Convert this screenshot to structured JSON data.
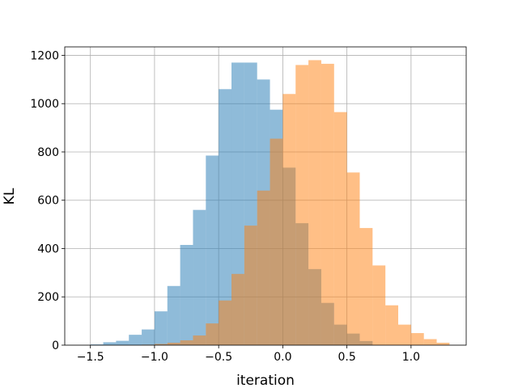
{
  "chart_data": {
    "type": "bar",
    "title": "",
    "xlabel": "iteration",
    "ylabel": "KL",
    "xlim": [
      -1.7,
      1.43
    ],
    "ylim": [
      0,
      1235
    ],
    "grid": true,
    "xticks": [
      -1.5,
      -1.0,
      -0.5,
      0.0,
      0.5,
      1.0
    ],
    "xtick_labels": [
      "−1.5",
      "−1.0",
      "−0.5",
      "0.0",
      "0.5",
      "1.0"
    ],
    "yticks": [
      0,
      200,
      400,
      600,
      800,
      1000,
      1200
    ],
    "ytick_labels": [
      "0",
      "200",
      "400",
      "600",
      "800",
      "1000",
      "1200"
    ],
    "series": [
      {
        "color": "#1f77b4",
        "opacity": 0.5,
        "bins": [
          -1.5,
          -1.4,
          -1.3,
          -1.2,
          -1.1,
          -1.0,
          -0.9,
          -0.8,
          -0.7,
          -0.6,
          -0.5,
          -0.4,
          -0.3,
          -0.2,
          -0.1,
          0.0,
          0.1,
          0.2,
          0.3,
          0.4,
          0.5,
          0.6,
          0.7
        ],
        "counts": [
          3,
          12,
          18,
          43,
          65,
          140,
          245,
          415,
          560,
          785,
          1060,
          1170,
          1170,
          1100,
          975,
          735,
          505,
          315,
          175,
          85,
          48,
          17
        ]
      },
      {
        "color": "#ff7f0e",
        "opacity": 0.5,
        "bins": [
          -1.1,
          -1.0,
          -0.9,
          -0.8,
          -0.7,
          -0.6,
          -0.5,
          -0.4,
          -0.3,
          -0.2,
          -0.1,
          0.0,
          0.1,
          0.2,
          0.3,
          0.4,
          0.5,
          0.6,
          0.7,
          0.8,
          0.9,
          1.0,
          1.1,
          1.2,
          1.3
        ],
        "counts": [
          2,
          5,
          10,
          20,
          40,
          90,
          185,
          295,
          495,
          640,
          855,
          1040,
          1160,
          1180,
          1165,
          965,
          715,
          485,
          330,
          165,
          85,
          50,
          25,
          10,
          5
        ]
      }
    ]
  }
}
